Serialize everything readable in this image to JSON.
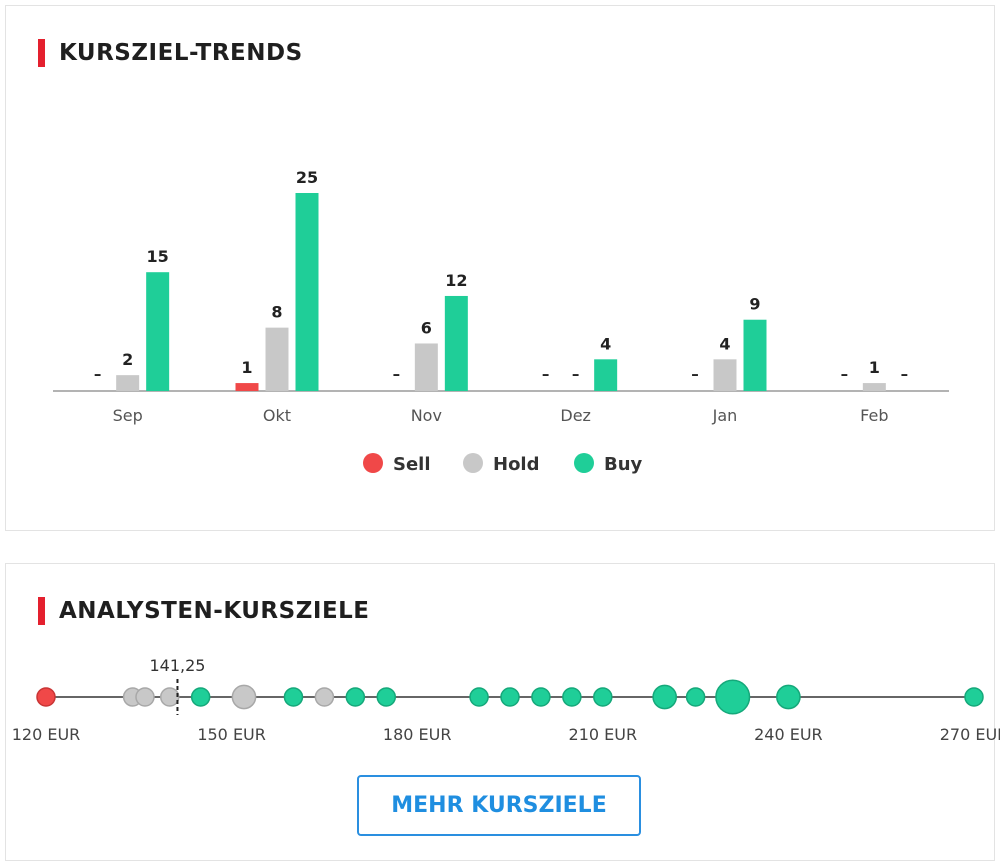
{
  "colors": {
    "accent": "#e4202e",
    "sell": "#f04848",
    "hold": "#c8c8c8",
    "buy": "#1fce98",
    "button": "#1f8ee0"
  },
  "trends": {
    "title": "KURSZIEL-TRENDS",
    "legend": {
      "sell": "Sell",
      "hold": "Hold",
      "buy": "Buy"
    },
    "empty_marker": "–"
  },
  "targets": {
    "title": "ANALYSTEN-KURSZIELE",
    "button_label": "MEHR KURSZIELE"
  },
  "chart_data": [
    {
      "type": "bar",
      "title": "KURSZIEL-TRENDS",
      "categories": [
        "Sep",
        "Okt",
        "Nov",
        "Dez",
        "Jan",
        "Feb"
      ],
      "series": [
        {
          "name": "Sell",
          "values": [
            null,
            1,
            null,
            null,
            null,
            null
          ]
        },
        {
          "name": "Hold",
          "values": [
            2,
            8,
            6,
            null,
            4,
            1
          ]
        },
        {
          "name": "Buy",
          "values": [
            15,
            25,
            12,
            4,
            9,
            null
          ]
        }
      ],
      "ylim": [
        0,
        25
      ],
      "grid": false,
      "legend": "bottom"
    },
    {
      "type": "scatter",
      "title": "ANALYSTEN-KURSZIELE",
      "xlim": [
        120,
        270
      ],
      "xticks": [
        120,
        150,
        180,
        210,
        240,
        270
      ],
      "xtick_labels": [
        "120 EUR",
        "150 EUR",
        "180 EUR",
        "210 EUR",
        "240 EUR",
        "270 EUR"
      ],
      "marker": {
        "value": 141.25,
        "label": "141,25"
      },
      "points": [
        {
          "x": 120,
          "rating": "sell",
          "count": 1
        },
        {
          "x": 134,
          "rating": "hold",
          "count": 1
        },
        {
          "x": 136,
          "rating": "hold",
          "count": 1
        },
        {
          "x": 140,
          "rating": "hold",
          "count": 1
        },
        {
          "x": 145,
          "rating": "buy",
          "count": 1
        },
        {
          "x": 152,
          "rating": "hold",
          "count": 2
        },
        {
          "x": 160,
          "rating": "buy",
          "count": 1
        },
        {
          "x": 165,
          "rating": "hold",
          "count": 1
        },
        {
          "x": 170,
          "rating": "buy",
          "count": 1
        },
        {
          "x": 175,
          "rating": "buy",
          "count": 1
        },
        {
          "x": 190,
          "rating": "buy",
          "count": 1
        },
        {
          "x": 195,
          "rating": "buy",
          "count": 1
        },
        {
          "x": 200,
          "rating": "buy",
          "count": 1
        },
        {
          "x": 205,
          "rating": "buy",
          "count": 1
        },
        {
          "x": 210,
          "rating": "buy",
          "count": 1
        },
        {
          "x": 220,
          "rating": "buy",
          "count": 2
        },
        {
          "x": 225,
          "rating": "buy",
          "count": 1
        },
        {
          "x": 231,
          "rating": "buy",
          "count": 4
        },
        {
          "x": 240,
          "rating": "buy",
          "count": 2
        },
        {
          "x": 270,
          "rating": "buy",
          "count": 1
        }
      ]
    }
  ]
}
